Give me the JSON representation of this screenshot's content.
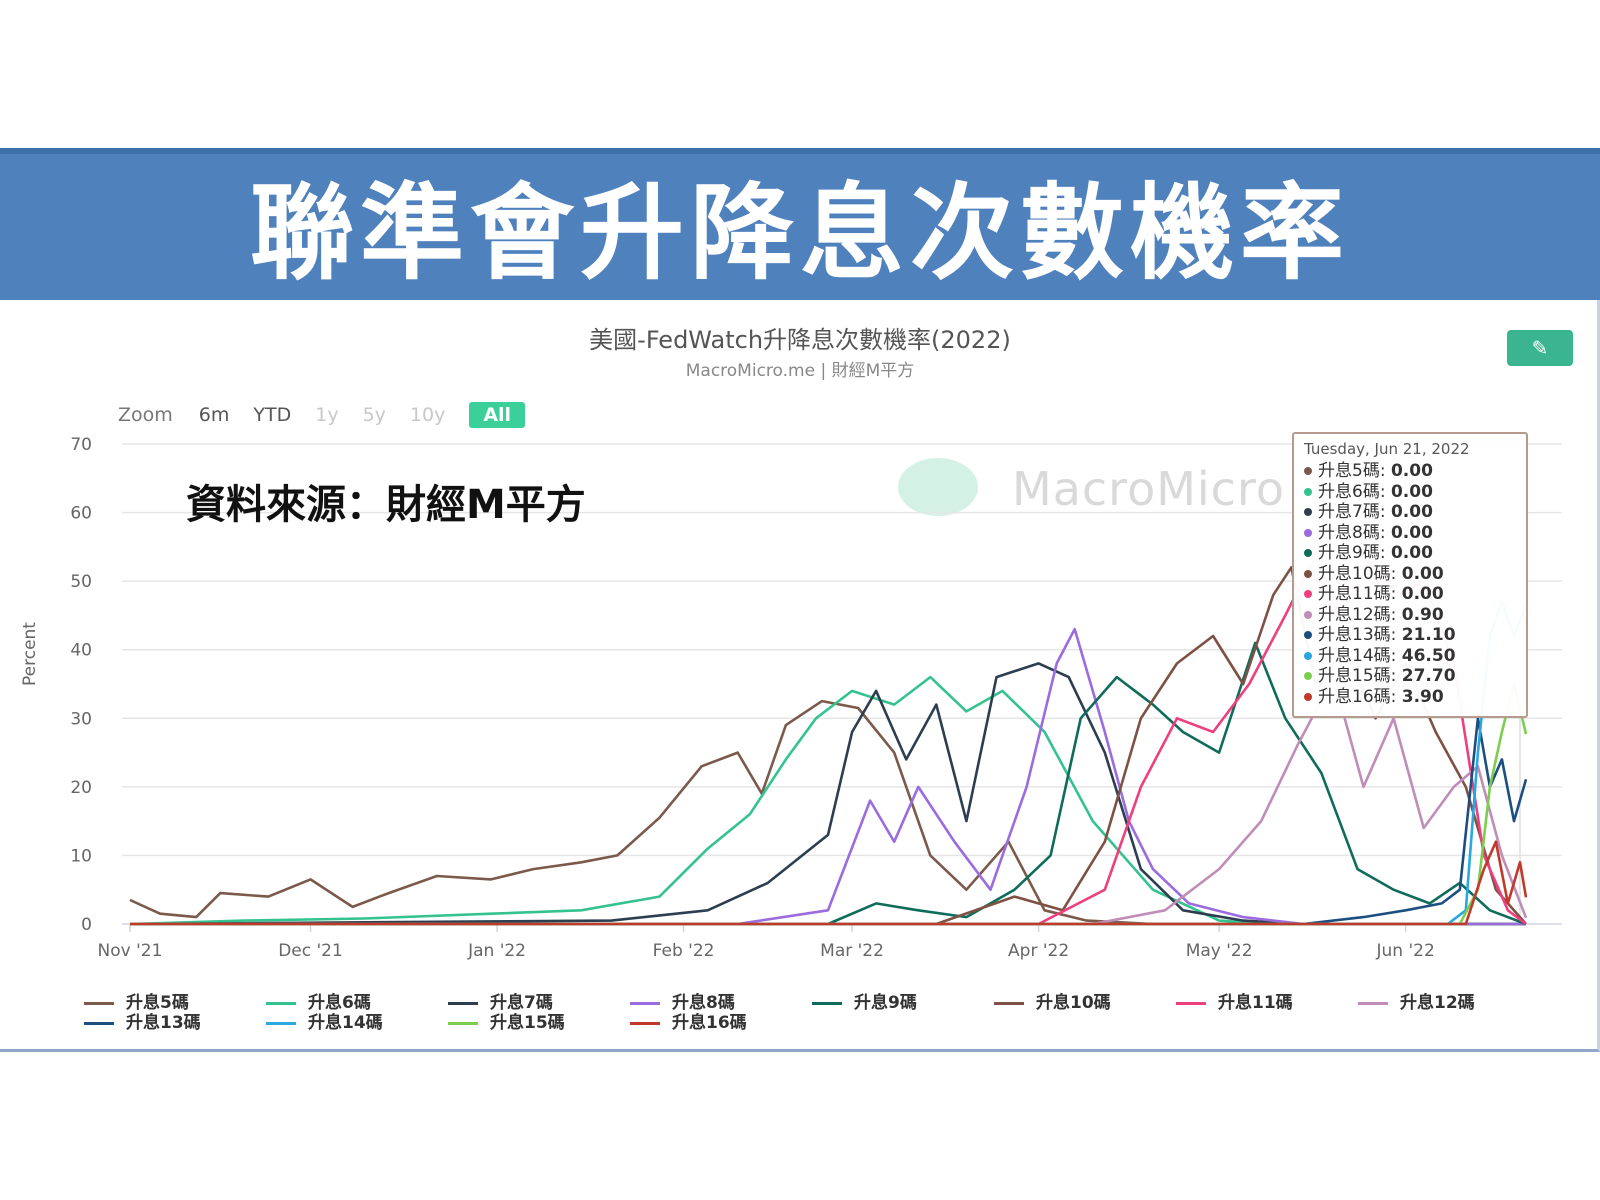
{
  "banner": {
    "title": "聯準會升降息次數機率"
  },
  "chart_header": {
    "title": "美國-FedWatch升降息次數機率(2022)",
    "subtitle": "MacroMicro.me | 財經M平方"
  },
  "zoom": {
    "label": "Zoom",
    "options": [
      "6m",
      "YTD",
      "1y",
      "5y",
      "10y",
      "All"
    ],
    "active": "All"
  },
  "watermark": "MacroMicro",
  "source_note": "資料來源：財經M平方",
  "tooltip": {
    "date": "Tuesday, Jun 21, 2022",
    "rows": [
      {
        "label": "升息5碼",
        "value": "0.00",
        "color": "#7b5a4b"
      },
      {
        "label": "升息6碼",
        "value": "0.00",
        "color": "#34c38f"
      },
      {
        "label": "升息7碼",
        "value": "0.00",
        "color": "#2c3e50"
      },
      {
        "label": "升息8碼",
        "value": "0.00",
        "color": "#9b6be0"
      },
      {
        "label": "升息9碼",
        "value": "0.00",
        "color": "#0f6b5a"
      },
      {
        "label": "升息10碼",
        "value": "0.00",
        "color": "#7e5145"
      },
      {
        "label": "升息11碼",
        "value": "0.00",
        "color": "#ee3f7f"
      },
      {
        "label": "升息12碼",
        "value": "0.90",
        "color": "#c08cb8"
      },
      {
        "label": "升息13碼",
        "value": "21.10",
        "color": "#1d4e80"
      },
      {
        "label": "升息14碼",
        "value": "46.50",
        "color": "#29a8e0"
      },
      {
        "label": "升息15碼",
        "value": "27.70",
        "color": "#7ccf4e"
      },
      {
        "label": "升息16碼",
        "value": "3.90",
        "color": "#c0392b"
      }
    ]
  },
  "chart_data": {
    "type": "line",
    "title": "美國-FedWatch升降息次數機率(2022)",
    "ylabel": "Percent",
    "ylim": [
      0,
      70
    ],
    "yticks": [
      0,
      10,
      20,
      30,
      40,
      50,
      60,
      70
    ],
    "xlim": [
      "2021-11-01",
      "2022-06-21"
    ],
    "xticks": [
      {
        "label": "Nov '21",
        "date": "2021-11-01"
      },
      {
        "label": "Dec '21",
        "date": "2021-12-01"
      },
      {
        "label": "Jan '22",
        "date": "2022-01-01"
      },
      {
        "label": "Feb '22",
        "date": "2022-02-01"
      },
      {
        "label": "Mar '22",
        "date": "2022-03-01"
      },
      {
        "label": "Apr '22",
        "date": "2022-04-01"
      },
      {
        "label": "May '22",
        "date": "2022-05-01"
      },
      {
        "label": "Jun '22",
        "date": "2022-06-01"
      }
    ],
    "series": [
      {
        "name": "升息5碼",
        "color": "#7b5a4b",
        "points": [
          [
            "2021-11-01",
            3.5
          ],
          [
            "2021-11-06",
            1.5
          ],
          [
            "2021-11-12",
            1
          ],
          [
            "2021-11-16",
            4.5
          ],
          [
            "2021-11-24",
            4
          ],
          [
            "2021-12-01",
            6.5
          ],
          [
            "2021-12-08",
            2.5
          ],
          [
            "2021-12-14",
            4.5
          ],
          [
            "2021-12-22",
            7
          ],
          [
            "2021-12-31",
            6.5
          ],
          [
            "2022-01-07",
            8
          ],
          [
            "2022-01-15",
            9
          ],
          [
            "2022-01-21",
            10
          ],
          [
            "2022-01-28",
            15.5
          ],
          [
            "2022-02-04",
            23
          ],
          [
            "2022-02-10",
            25
          ],
          [
            "2022-02-14",
            19
          ],
          [
            "2022-02-18",
            29
          ],
          [
            "2022-02-24",
            32.5
          ],
          [
            "2022-03-02",
            31.5
          ],
          [
            "2022-03-08",
            25
          ],
          [
            "2022-03-14",
            10
          ],
          [
            "2022-03-20",
            5
          ],
          [
            "2022-03-27",
            12
          ],
          [
            "2022-04-02",
            2
          ],
          [
            "2022-04-09",
            0.5
          ],
          [
            "2022-04-20",
            0
          ],
          [
            "2022-06-21",
            0
          ]
        ]
      },
      {
        "name": "升息6碼",
        "color": "#34c38f",
        "points": [
          [
            "2021-11-01",
            0
          ],
          [
            "2021-11-20",
            0.5
          ],
          [
            "2021-12-10",
            0.8
          ],
          [
            "2021-12-31",
            1.5
          ],
          [
            "2022-01-15",
            2
          ],
          [
            "2022-01-28",
            4
          ],
          [
            "2022-02-05",
            11
          ],
          [
            "2022-02-12",
            16
          ],
          [
            "2022-02-18",
            24
          ],
          [
            "2022-02-23",
            30
          ],
          [
            "2022-03-01",
            34
          ],
          [
            "2022-03-08",
            32
          ],
          [
            "2022-03-14",
            36
          ],
          [
            "2022-03-20",
            31
          ],
          [
            "2022-03-26",
            34
          ],
          [
            "2022-04-02",
            28
          ],
          [
            "2022-04-10",
            15
          ],
          [
            "2022-04-20",
            5
          ],
          [
            "2022-05-01",
            0.5
          ],
          [
            "2022-05-10",
            0
          ],
          [
            "2022-06-21",
            0
          ]
        ]
      },
      {
        "name": "升息7碼",
        "color": "#2c3e50",
        "points": [
          [
            "2021-11-01",
            0
          ],
          [
            "2022-01-20",
            0.5
          ],
          [
            "2022-02-05",
            2
          ],
          [
            "2022-02-15",
            6
          ],
          [
            "2022-02-25",
            13
          ],
          [
            "2022-03-01",
            28
          ],
          [
            "2022-03-05",
            34
          ],
          [
            "2022-03-10",
            24
          ],
          [
            "2022-03-15",
            32
          ],
          [
            "2022-03-20",
            15
          ],
          [
            "2022-03-25",
            36
          ],
          [
            "2022-04-01",
            38
          ],
          [
            "2022-04-06",
            36
          ],
          [
            "2022-04-12",
            25
          ],
          [
            "2022-04-18",
            8
          ],
          [
            "2022-04-25",
            2
          ],
          [
            "2022-05-05",
            0.5
          ],
          [
            "2022-05-15",
            0
          ],
          [
            "2022-06-21",
            0
          ]
        ]
      },
      {
        "name": "升息8碼",
        "color": "#9b6be0",
        "points": [
          [
            "2021-11-01",
            0
          ],
          [
            "2022-02-10",
            0
          ],
          [
            "2022-02-25",
            2
          ],
          [
            "2022-03-04",
            18
          ],
          [
            "2022-03-08",
            12
          ],
          [
            "2022-03-12",
            20
          ],
          [
            "2022-03-18",
            12
          ],
          [
            "2022-03-24",
            5
          ],
          [
            "2022-03-30",
            20
          ],
          [
            "2022-04-04",
            38
          ],
          [
            "2022-04-07",
            43
          ],
          [
            "2022-04-12",
            28
          ],
          [
            "2022-04-16",
            15
          ],
          [
            "2022-04-20",
            8
          ],
          [
            "2022-04-26",
            3
          ],
          [
            "2022-05-05",
            1
          ],
          [
            "2022-05-15",
            0
          ],
          [
            "2022-06-21",
            0
          ]
        ]
      },
      {
        "name": "升息9碼",
        "color": "#0f6b5a",
        "points": [
          [
            "2021-11-01",
            0
          ],
          [
            "2022-02-25",
            0
          ],
          [
            "2022-03-05",
            3
          ],
          [
            "2022-03-12",
            2
          ],
          [
            "2022-03-20",
            1
          ],
          [
            "2022-03-28",
            5
          ],
          [
            "2022-04-03",
            10
          ],
          [
            "2022-04-08",
            30
          ],
          [
            "2022-04-14",
            36
          ],
          [
            "2022-04-20",
            32
          ],
          [
            "2022-04-25",
            28
          ],
          [
            "2022-05-01",
            25
          ],
          [
            "2022-05-07",
            41
          ],
          [
            "2022-05-12",
            30
          ],
          [
            "2022-05-18",
            22
          ],
          [
            "2022-05-24",
            8
          ],
          [
            "2022-05-30",
            5
          ],
          [
            "2022-06-05",
            3
          ],
          [
            "2022-06-10",
            6
          ],
          [
            "2022-06-15",
            2
          ],
          [
            "2022-06-21",
            0
          ]
        ]
      },
      {
        "name": "升息10碼",
        "color": "#7e5145",
        "points": [
          [
            "2021-11-01",
            0
          ],
          [
            "2022-03-15",
            0
          ],
          [
            "2022-03-28",
            4
          ],
          [
            "2022-04-05",
            2
          ],
          [
            "2022-04-12",
            12
          ],
          [
            "2022-04-18",
            30
          ],
          [
            "2022-04-24",
            38
          ],
          [
            "2022-04-30",
            42
          ],
          [
            "2022-05-05",
            35
          ],
          [
            "2022-05-10",
            48
          ],
          [
            "2022-05-13",
            52
          ],
          [
            "2022-05-17",
            35
          ],
          [
            "2022-05-22",
            40
          ],
          [
            "2022-05-27",
            30
          ],
          [
            "2022-06-01",
            38
          ],
          [
            "2022-06-06",
            28
          ],
          [
            "2022-06-11",
            20
          ],
          [
            "2022-06-16",
            5
          ],
          [
            "2022-06-21",
            0
          ]
        ]
      },
      {
        "name": "升息11碼",
        "color": "#ee3f7f",
        "points": [
          [
            "2021-11-01",
            0
          ],
          [
            "2022-04-01",
            0
          ],
          [
            "2022-04-12",
            5
          ],
          [
            "2022-04-18",
            20
          ],
          [
            "2022-04-24",
            30
          ],
          [
            "2022-04-30",
            28
          ],
          [
            "2022-05-06",
            35
          ],
          [
            "2022-05-12",
            45
          ],
          [
            "2022-05-16",
            52
          ],
          [
            "2022-05-21",
            45
          ],
          [
            "2022-05-26",
            53
          ],
          [
            "2022-05-31",
            48
          ],
          [
            "2022-06-04",
            50
          ],
          [
            "2022-06-09",
            38
          ],
          [
            "2022-06-14",
            10
          ],
          [
            "2022-06-18",
            2
          ],
          [
            "2022-06-21",
            0
          ]
        ]
      },
      {
        "name": "升息12碼",
        "color": "#c08cb8",
        "points": [
          [
            "2021-11-01",
            0
          ],
          [
            "2022-04-10",
            0
          ],
          [
            "2022-04-22",
            2
          ],
          [
            "2022-05-01",
            8
          ],
          [
            "2022-05-08",
            15
          ],
          [
            "2022-05-14",
            26
          ],
          [
            "2022-05-20",
            36
          ],
          [
            "2022-05-25",
            20
          ],
          [
            "2022-05-30",
            30
          ],
          [
            "2022-06-04",
            14
          ],
          [
            "2022-06-09",
            20
          ],
          [
            "2022-06-13",
            23
          ],
          [
            "2022-06-17",
            10
          ],
          [
            "2022-06-21",
            0.9
          ]
        ]
      },
      {
        "name": "升息13碼",
        "color": "#1d4e80",
        "points": [
          [
            "2021-11-01",
            0
          ],
          [
            "2022-05-15",
            0
          ],
          [
            "2022-05-25",
            1
          ],
          [
            "2022-06-01",
            2
          ],
          [
            "2022-06-07",
            3
          ],
          [
            "2022-06-10",
            5
          ],
          [
            "2022-06-13",
            30
          ],
          [
            "2022-06-15",
            20
          ],
          [
            "2022-06-17",
            24
          ],
          [
            "2022-06-19",
            15
          ],
          [
            "2022-06-21",
            21.1
          ]
        ]
      },
      {
        "name": "升息14碼",
        "color": "#29a8e0",
        "points": [
          [
            "2021-11-01",
            0
          ],
          [
            "2022-06-08",
            0
          ],
          [
            "2022-06-11",
            2
          ],
          [
            "2022-06-13",
            25
          ],
          [
            "2022-06-15",
            42
          ],
          [
            "2022-06-17",
            47
          ],
          [
            "2022-06-19",
            42
          ],
          [
            "2022-06-21",
            46.5
          ]
        ]
      },
      {
        "name": "升息15碼",
        "color": "#7ccf4e",
        "points": [
          [
            "2021-11-01",
            0
          ],
          [
            "2022-06-10",
            0
          ],
          [
            "2022-06-13",
            5
          ],
          [
            "2022-06-15",
            20
          ],
          [
            "2022-06-17",
            28
          ],
          [
            "2022-06-19",
            35
          ],
          [
            "2022-06-21",
            27.7
          ]
        ]
      },
      {
        "name": "升息16碼",
        "color": "#c0392b",
        "points": [
          [
            "2021-11-01",
            0
          ],
          [
            "2022-06-11",
            0
          ],
          [
            "2022-06-14",
            8
          ],
          [
            "2022-06-16",
            12
          ],
          [
            "2022-06-18",
            3
          ],
          [
            "2022-06-20",
            9
          ],
          [
            "2022-06-21",
            3.9
          ]
        ]
      }
    ]
  }
}
